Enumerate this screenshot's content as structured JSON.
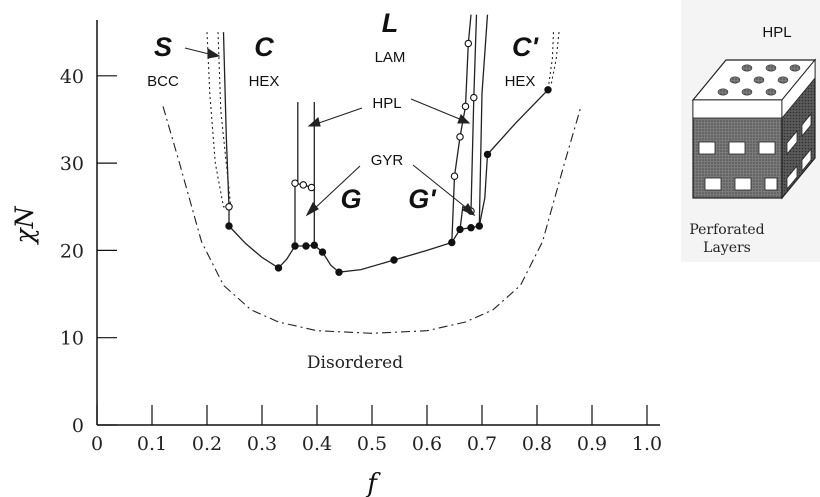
{
  "chart_data": {
    "type": "scatter",
    "xlabel": "f",
    "ylabel": "χN",
    "xlim": [
      0,
      1.0
    ],
    "ylim": [
      0,
      45
    ],
    "x_ticks": [
      "0",
      "0.1",
      "0.2",
      "0.3",
      "0.4",
      "0.5",
      "0.6",
      "0.7",
      "0.8",
      "0.9",
      "1.0"
    ],
    "y_ticks": [
      "0",
      "10",
      "20",
      "30",
      "40"
    ],
    "y_tick_values": [
      0,
      10,
      20,
      30,
      40
    ],
    "phase_labels": [
      {
        "letter": "S",
        "name": "BCC",
        "f": 0.13
      },
      {
        "letter": "C",
        "name": "HEX",
        "f": 0.31
      },
      {
        "letter": "L",
        "name": "LAM",
        "f": 0.5
      },
      {
        "letter": "C'",
        "name": "HEX",
        "f": 0.78
      }
    ],
    "annotations": {
      "hpl": "HPL",
      "gyr": "GYR",
      "g": "G",
      "g_prime": "G'",
      "disordered": "Disordered"
    },
    "series": [
      {
        "role": "order-disorder boundary (solid, filled points)",
        "style": "solid",
        "marker": "filled",
        "x": [
          0.24,
          0.33,
          0.36,
          0.38,
          0.395,
          0.41,
          0.44,
          0.54,
          0.645,
          0.66,
          0.68,
          0.695,
          0.71,
          0.82
        ],
        "y": [
          22.8,
          18.0,
          20.5,
          20.5,
          20.6,
          19.8,
          17.5,
          18.9,
          20.9,
          22.4,
          22.6,
          22.8,
          31.0,
          38.4
        ]
      },
      {
        "role": "order-order boundaries (solid, open points)",
        "style": "solid",
        "marker": "open",
        "x": [
          0.24,
          0.36,
          0.375,
          0.39,
          0.65,
          0.66,
          0.67,
          0.675,
          0.68,
          0.685
        ],
        "y": [
          25.0,
          27.7,
          27.5,
          27.2,
          28.5,
          33.0,
          36.5,
          43.7,
          24.5,
          37.5
        ]
      },
      {
        "role": "mean-field order-disorder boundary",
        "style": "dash-dot",
        "x": [
          0.12,
          0.2,
          0.3,
          0.4,
          0.5,
          0.6,
          0.7,
          0.8,
          0.88
        ],
        "y": [
          36.5,
          17.0,
          12.3,
          10.6,
          10.5,
          10.6,
          12.0,
          17.0,
          36.5
        ]
      }
    ],
    "inset": {
      "title": "HPL",
      "caption_line1": "Perforated",
      "caption_line2": "Layers"
    }
  }
}
